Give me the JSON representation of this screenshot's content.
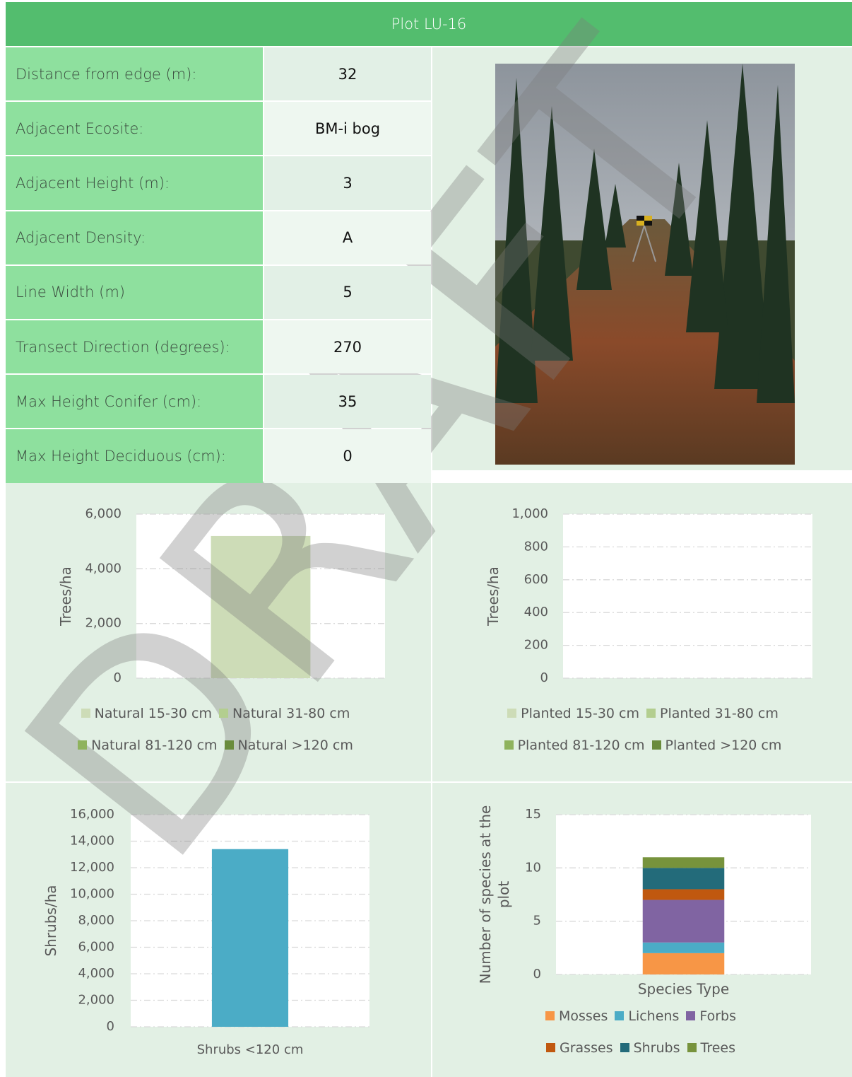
{
  "header": {
    "title": "Plot LU-16"
  },
  "table": {
    "rows": [
      [
        "Distance from edge (m):",
        32
      ],
      [
        "Adjacent Ecosite:",
        "BM-i bog"
      ],
      [
        "Adjacent Height (m):",
        3
      ],
      [
        "Adjacent Density:",
        "A"
      ],
      [
        "Line Width (m)",
        5
      ],
      [
        "Transect Direction (degrees):",
        270
      ],
      [
        "Max Height Conifer (cm):",
        35
      ],
      [
        "Max Height Deciduous (cm):",
        0
      ]
    ]
  },
  "watermark": "DRAFT",
  "chart_data": [
    {
      "type": "bar",
      "stacked": true,
      "ylabel": "Trees/ha",
      "categories": [
        null
      ],
      "ylim": [
        0,
        6000
      ],
      "yticks": [
        0,
        {
          "value": 2000,
          "label": "2,000"
        },
        {
          "value": 4000,
          "label": "4,000"
        },
        {
          "value": 6000,
          "label": "6,000"
        }
      ],
      "grid": true,
      "series": [
        {
          "name": "Natural 15-30 cm",
          "color": "#cddcb7",
          "values": [
            5200
          ]
        },
        {
          "name": "Natural 31-80 cm",
          "color": "#b3ce8f",
          "values": [
            0
          ]
        },
        {
          "name": "Natural 81-120 cm",
          "color": "#8fb35d",
          "values": [
            0
          ]
        },
        {
          "name": "Natural >120 cm",
          "color": "#6a8c3c",
          "values": [
            0
          ]
        }
      ]
    },
    {
      "type": "bar",
      "stacked": true,
      "ylabel": "Trees/ha",
      "categories": [
        null
      ],
      "ylim": [
        0,
        1000
      ],
      "yticks": [
        0,
        200,
        400,
        600,
        800,
        {
          "value": 1000,
          "label": "1,000"
        }
      ],
      "grid": true,
      "series": [
        {
          "name": "Planted 15-30 cm",
          "color": "#cddcb7",
          "values": [
            0
          ]
        },
        {
          "name": "Planted 31-80 cm",
          "color": "#b3ce8f",
          "values": [
            0
          ]
        },
        {
          "name": "Planted 81-120 cm",
          "color": "#8fb35d",
          "values": [
            0
          ]
        },
        {
          "name": "Planted >120 cm",
          "color": "#6a8c3c",
          "values": [
            0
          ]
        }
      ]
    },
    {
      "type": "bar",
      "stacked": true,
      "ylabel": "Shrubs/ha",
      "categories": [
        "Shrubs <120 cm"
      ],
      "ylim": [
        0,
        16000
      ],
      "yticks": [
        0,
        {
          "value": 2000,
          "label": "2,000"
        },
        {
          "value": 4000,
          "label": "4,000"
        },
        {
          "value": 6000,
          "label": "6,000"
        },
        {
          "value": 8000,
          "label": "8,000"
        },
        {
          "value": 10000,
          "label": "10,000"
        },
        {
          "value": 12000,
          "label": "12,000"
        },
        {
          "value": 14000,
          "label": "14,000"
        },
        {
          "value": 16000,
          "label": "16,000"
        }
      ],
      "grid": true,
      "series": [
        {
          "color": "#4bacc6",
          "values": [
            13400
          ]
        }
      ]
    },
    {
      "type": "bar",
      "stacked": true,
      "ylabel": "Number of species at the plot",
      "categories": [
        "Species Type"
      ],
      "ylim": [
        0,
        15
      ],
      "yticks": [
        0,
        5,
        10,
        15
      ],
      "grid": true,
      "series": [
        {
          "name": "Mosses",
          "color": "#f79646",
          "values": [
            2
          ]
        },
        {
          "name": "Lichens",
          "color": "#4bacc6",
          "values": [
            1
          ]
        },
        {
          "name": "Forbs",
          "color": "#8064a2",
          "values": [
            4
          ]
        },
        {
          "name": "Grasses",
          "color": "#c0580f",
          "values": [
            1
          ]
        },
        {
          "name": "Shrubs",
          "color": "#236b7a",
          "values": [
            2
          ]
        },
        {
          "name": "Trees",
          "color": "#77933c",
          "values": [
            1
          ]
        }
      ]
    }
  ]
}
